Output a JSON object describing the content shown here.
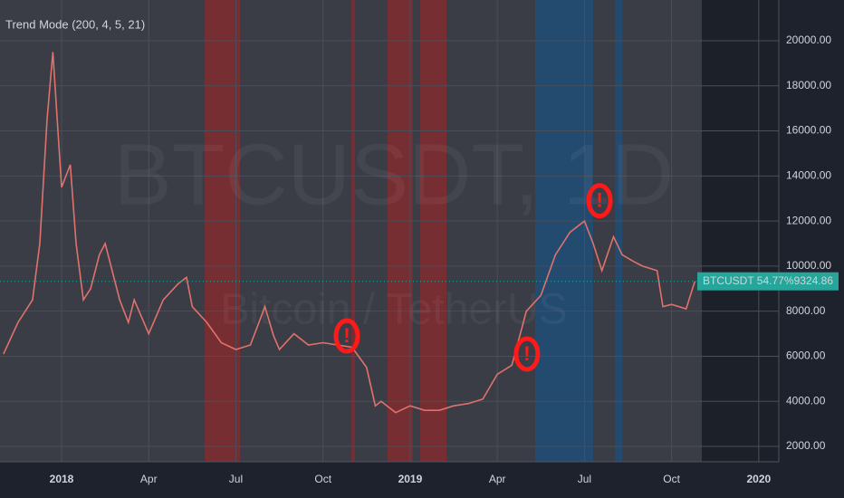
{
  "chart_data": {
    "type": "line",
    "title": "Trend Mode (200, 4, 5, 21)",
    "watermark": "BTCUSDT, 1D",
    "watermark_subtitle": "Bitcoin / TetherUS",
    "price_label_name": "BTCUSDT 54.77%",
    "color": "#e0726b",
    "x": [
      -2.0,
      -1.5,
      -1.0,
      -0.75,
      -0.5,
      -0.3,
      0,
      0.3,
      0.5,
      0.75,
      1.0,
      1.3,
      1.5,
      2.0,
      2.3,
      2.5,
      3.0,
      3.5,
      4.0,
      4.3,
      4.5,
      5.0,
      5.5,
      6.0,
      6.5,
      7.0,
      7.3,
      7.5,
      8.0,
      8.5,
      9.0,
      9.5,
      10.0,
      10.5,
      10.8,
      11.0,
      11.5,
      12.0,
      12.5,
      13.0,
      13.5,
      14.0,
      14.5,
      15.0,
      15.5,
      16.0,
      16.5,
      17.0,
      17.5,
      18.0,
      18.3,
      18.6,
      19.0,
      19.3,
      19.7,
      20.0,
      20.5,
      20.7,
      21.0,
      21.5,
      21.8
    ],
    "values": [
      6100,
      7500,
      8500,
      11000,
      16500,
      19500,
      13500,
      14500,
      11000,
      8500,
      9000,
      10500,
      11000,
      8500,
      7500,
      8500,
      7000,
      8500,
      9200,
      9500,
      8200,
      7500,
      6600,
      6300,
      6500,
      8200,
      6900,
      6300,
      7000,
      6500,
      6600,
      6500,
      6400,
      5500,
      3800,
      4000,
      3500,
      3800,
      3600,
      3600,
      3800,
      3900,
      4100,
      5200,
      5600,
      8000,
      8700,
      10500,
      11500,
      12000,
      11000,
      9800,
      11300,
      10500,
      10200,
      10000,
      9800,
      8200,
      8300,
      8100,
      9324.86
    ],
    "xlim": [
      -2.12,
      24.69
    ],
    "ylim": [
      1317,
      21808
    ],
    "xticks": [
      {
        "value": 0,
        "label": "2018"
      },
      {
        "value": 3,
        "label": "Apr"
      },
      {
        "value": 6,
        "label": "Jul"
      },
      {
        "value": 9,
        "label": "Oct"
      },
      {
        "value": 12,
        "label": "2019"
      },
      {
        "value": 15,
        "label": "Apr"
      },
      {
        "value": 18,
        "label": "Jul"
      },
      {
        "value": 21,
        "label": "Oct"
      },
      {
        "value": 24,
        "label": "2020"
      }
    ],
    "yticks": [
      {
        "value": 2000,
        "label": "2000.00"
      },
      {
        "value": 4000,
        "label": "4000.00"
      },
      {
        "value": 6000,
        "label": "6000.00"
      },
      {
        "value": 8000,
        "label": "8000.00"
      },
      {
        "value": 10000,
        "label": "10000.00"
      },
      {
        "value": 12000,
        "label": "12000.00"
      },
      {
        "value": 14000,
        "label": "14000.00"
      },
      {
        "value": 16000,
        "label": "16000.00"
      },
      {
        "value": 18000,
        "label": "18000.00"
      },
      {
        "value": 20000,
        "label": "20000.00"
      }
    ],
    "grid": true,
    "bands": [
      {
        "from": 4.93,
        "to": 6.14,
        "color": "#8b2a2e"
      },
      {
        "from": 9.98,
        "to": 10.1,
        "color": "#8b2a2e"
      },
      {
        "from": 11.22,
        "to": 12.09,
        "color": "#8b2a2e"
      },
      {
        "from": 12.34,
        "to": 13.25,
        "color": "#8b2a2e"
      },
      {
        "from": 16.3,
        "to": 18.3,
        "color": "#1c4f7e"
      },
      {
        "from": 19.05,
        "to": 19.3,
        "color": "#1c4f7e"
      }
    ],
    "annotations": [
      {
        "text": "!",
        "x": 9.82,
        "y": 6900
      },
      {
        "text": "!",
        "x": 16.02,
        "y": 6100
      },
      {
        "text": "!",
        "x": 18.52,
        "y": 12900
      }
    ]
  }
}
